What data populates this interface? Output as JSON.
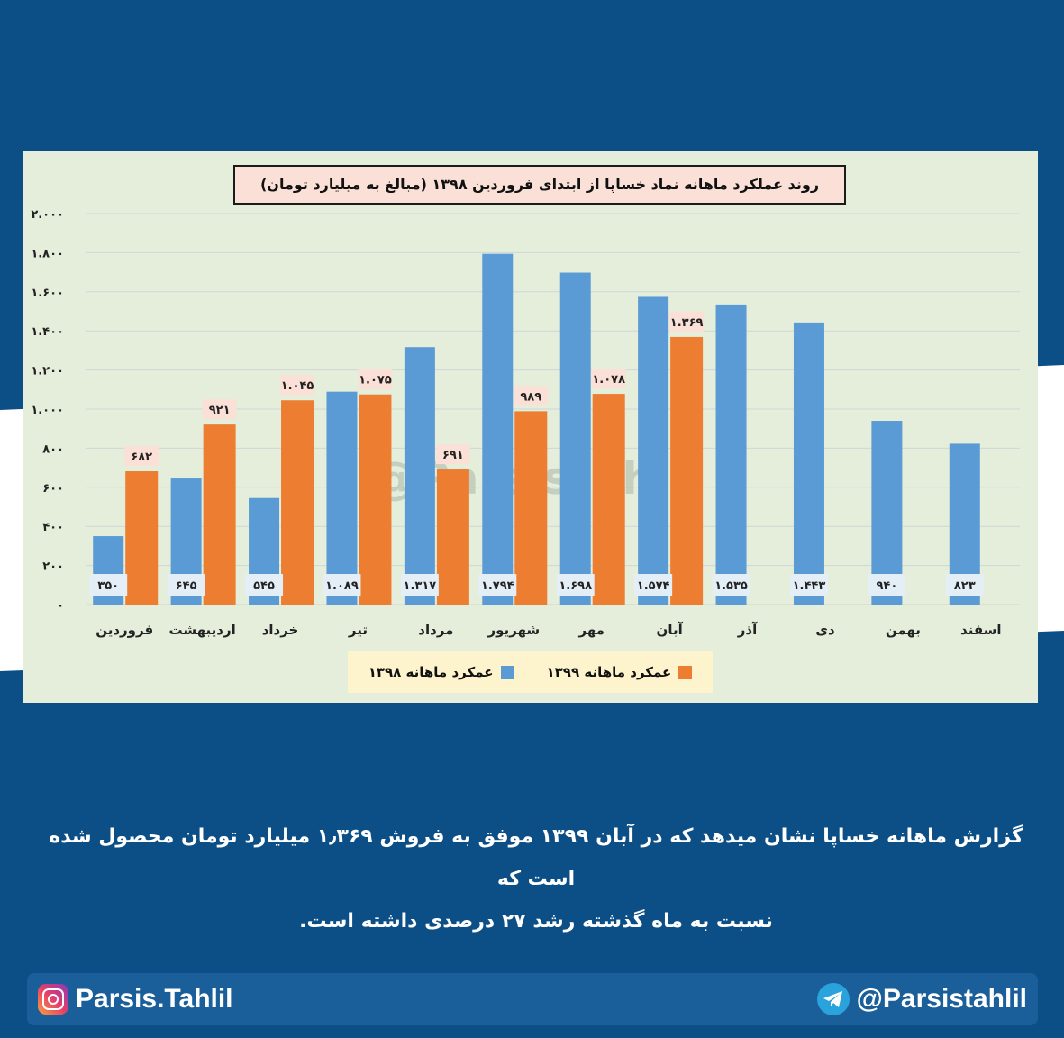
{
  "chart_data": {
    "type": "bar",
    "title": "روند عملکرد ماهانه نماد خساپا از ابتدای فروردین ۱۳۹۸ (مبالغ به میلیارد تومان)",
    "categories": [
      "فروردین",
      "اردیبهشت",
      "خرداد",
      "تیر",
      "مرداد",
      "شهریور",
      "مهر",
      "آبان",
      "آذر",
      "دی",
      "بهمن",
      "اسفند"
    ],
    "series": [
      {
        "name": "عمکرد ماهانه ۱۳۹۸",
        "color": "#5b9bd5",
        "values": [
          350,
          645,
          545,
          1089,
          1317,
          1794,
          1698,
          1574,
          1535,
          1443,
          940,
          823
        ],
        "labels": [
          "۳۵۰",
          "۶۴۵",
          "۵۴۵",
          "۱.۰۸۹",
          "۱.۳۱۷",
          "۱.۷۹۴",
          "۱.۶۹۸",
          "۱.۵۷۴",
          "۱.۵۳۵",
          "۱.۴۴۳",
          "۹۴۰",
          "۸۲۳"
        ]
      },
      {
        "name": "عمکرد ماهانه ۱۳۹۹",
        "color": "#ed7d31",
        "values": [
          682,
          921,
          1045,
          1075,
          691,
          989,
          1078,
          1369,
          null,
          null,
          null,
          null
        ],
        "labels": [
          "۶۸۲",
          "۹۲۱",
          "۱.۰۴۵",
          "۱.۰۷۵",
          "۶۹۱",
          "۹۸۹",
          "۱.۰۷۸",
          "۱.۳۶۹",
          "",
          "",
          "",
          ""
        ]
      }
    ],
    "ylim": [
      0,
      2000
    ],
    "yticks": [
      0,
      200,
      400,
      600,
      800,
      1000,
      1200,
      1400,
      1600,
      1800,
      2000
    ],
    "ytick_labels": [
      "۰",
      "۲۰۰",
      "۴۰۰",
      "۶۰۰",
      "۸۰۰",
      "۱.۰۰۰",
      "۱.۲۰۰",
      "۱.۴۰۰",
      "۱.۶۰۰",
      "۱.۸۰۰",
      "۲.۰۰۰"
    ],
    "grid": true,
    "legend_position": "bottom-center",
    "watermark": "@Parsistahlil"
  },
  "caption": {
    "line1": "گزارش ماهانه خساپا نشان میدهد که در آبان ۱۳۹۹ موفق به فروش ۱٫۳۶۹ میلیارد تومان محصول شده است که",
    "line2": "نسبت به ماه گذشته رشد ۲۷ درصدی داشته است."
  },
  "footer": {
    "instagram": "Parsis.Tahlil",
    "telegram": "@Parsistahlil"
  }
}
